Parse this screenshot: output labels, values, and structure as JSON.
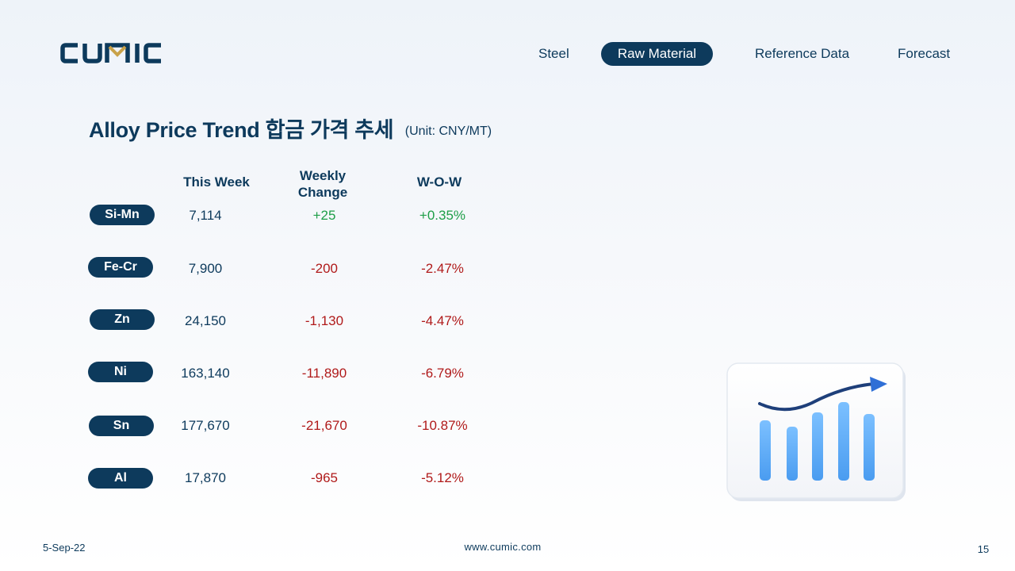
{
  "logo": {
    "text": "CUMIC"
  },
  "nav": {
    "items": [
      {
        "label": "Steel",
        "active": false
      },
      {
        "label": "Raw Material",
        "active": true
      },
      {
        "label": "Reference Data",
        "active": false
      },
      {
        "label": "Forecast",
        "active": false
      }
    ]
  },
  "page": {
    "title": "Alloy Price Trend 합금 가격 추세",
    "unit": "(Unit: CNY/MT)"
  },
  "table": {
    "headers": {
      "this_week": "This Week",
      "weekly_change_1": "Weekly",
      "weekly_change_2": "Change",
      "wow": "W-O-W"
    },
    "rows": [
      {
        "metal": "Si-Mn",
        "this_week": "7,114",
        "weekly_change": "+25",
        "wow": "+0.35%",
        "trend": "pos"
      },
      {
        "metal": "Fe-Cr",
        "this_week": "7,900",
        "weekly_change": "-200",
        "wow": "-2.47%",
        "trend": "neg"
      },
      {
        "metal": "Zn",
        "this_week": "24,150",
        "weekly_change": "-1,130",
        "wow": "-4.47%",
        "trend": "neg"
      },
      {
        "metal": "Ni",
        "this_week": "163,140",
        "weekly_change": "-11,890",
        "wow": "-6.79%",
        "trend": "neg"
      },
      {
        "metal": "Sn",
        "this_week": "177,670",
        "weekly_change": "-21,670",
        "wow": "-10.87%",
        "trend": "neg"
      },
      {
        "metal": "Al",
        "this_week": "17,870",
        "weekly_change": "-965",
        "wow": "-5.12%",
        "trend": "neg"
      }
    ]
  },
  "illustration": {
    "icon": "rising-bar-chart-icon"
  },
  "footer": {
    "date": "5-Sep-22",
    "url": "www.cumic.com",
    "page_number": "15"
  },
  "colors": {
    "brand_navy": "#0d3a5c",
    "logo_gold": "#c9a24a",
    "positive": "#1e9e48",
    "negative": "#b01a1a"
  }
}
